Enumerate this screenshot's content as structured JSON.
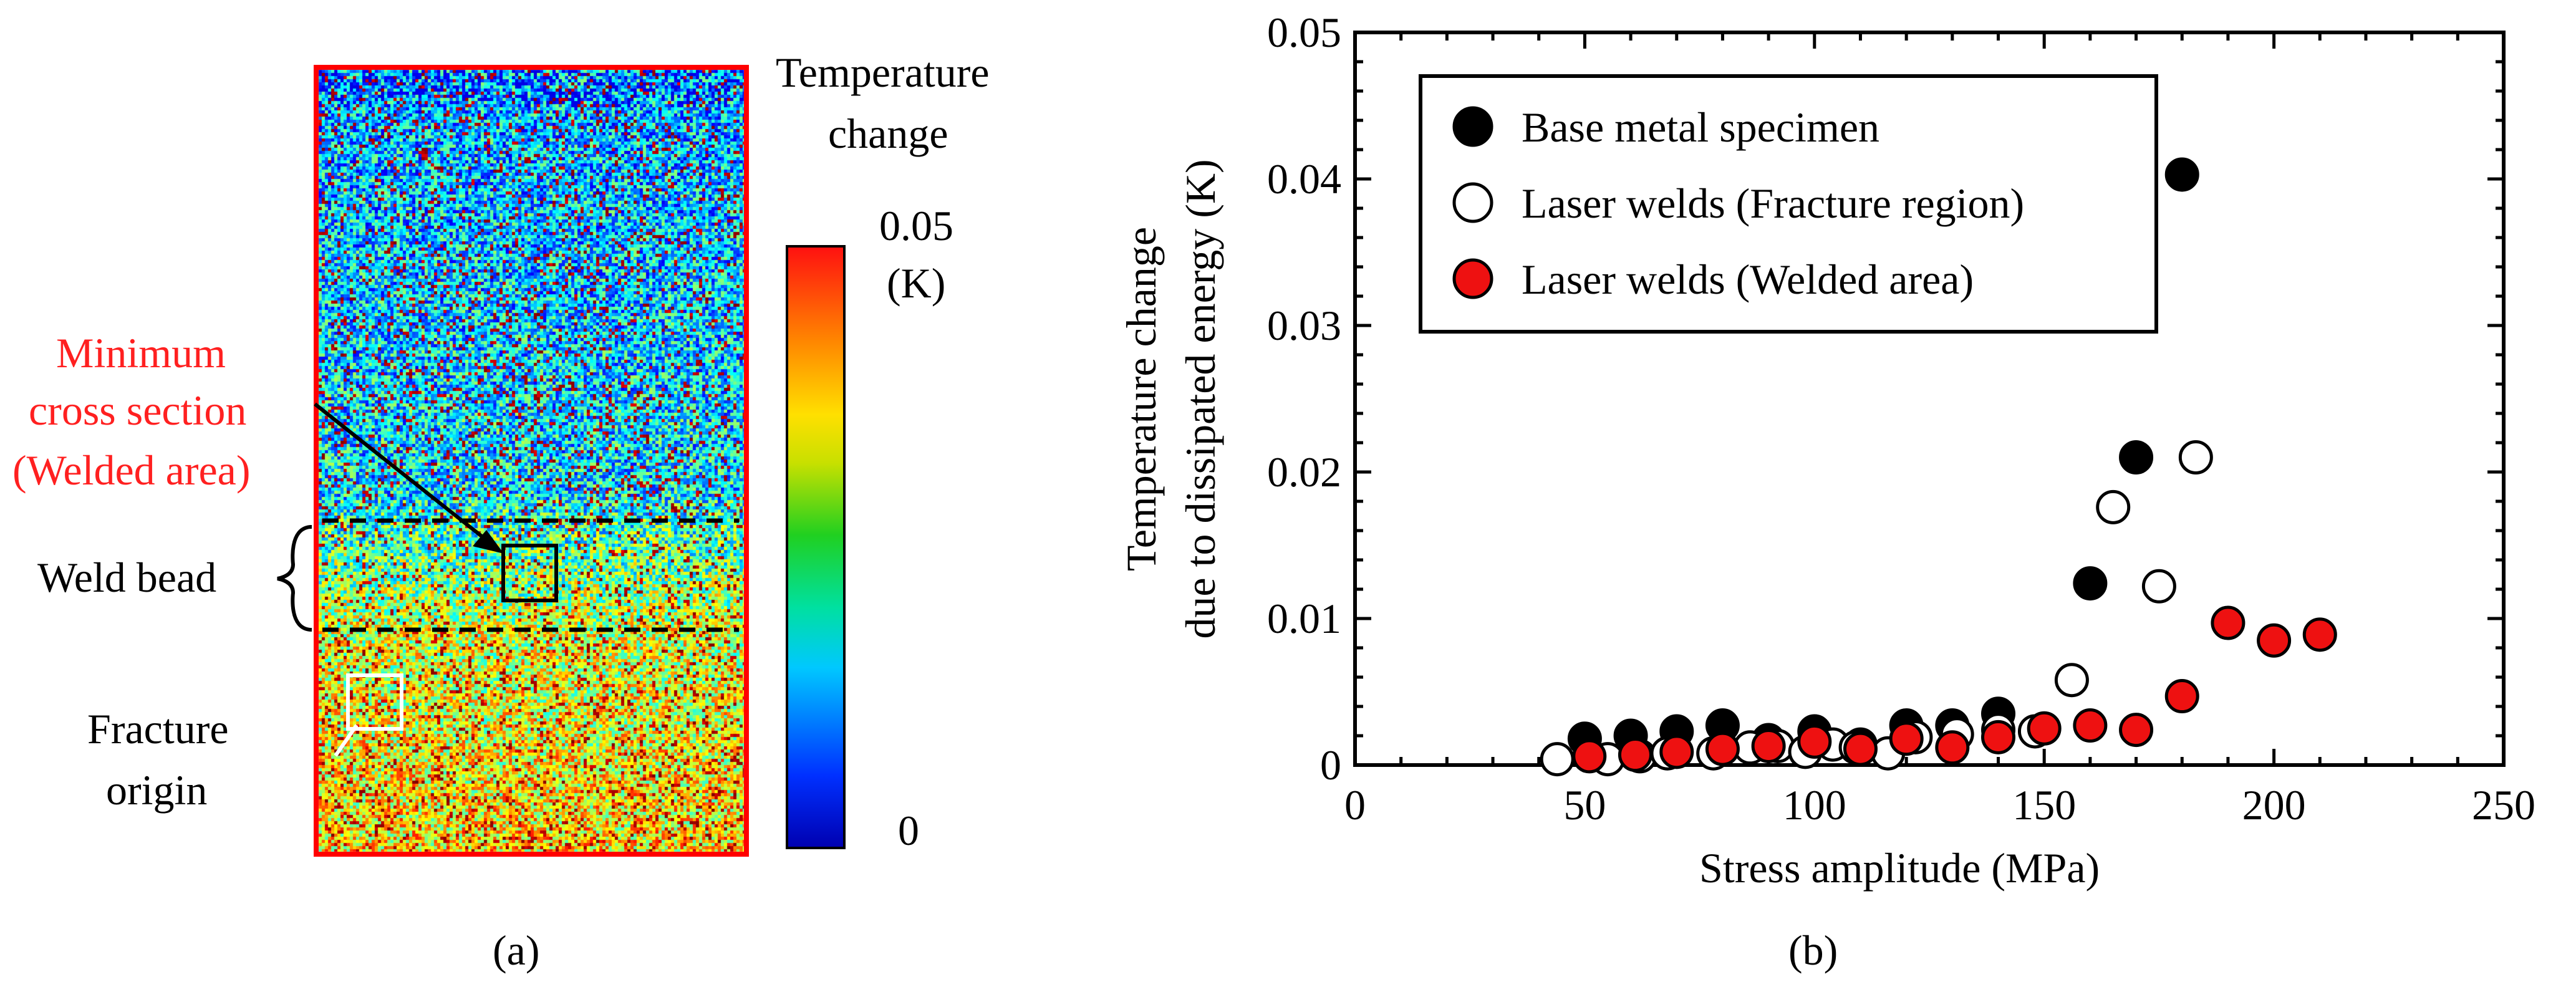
{
  "panel_a": {
    "label": "(a)",
    "colorbar": {
      "title_line1": "Temperature",
      "title_line2": "change",
      "max_label": "0.05",
      "unit_label": "(K)",
      "min_label": "0"
    },
    "annotations": {
      "min_cross_line1": "Minimum",
      "min_cross_line2": "cross section",
      "min_cross_line3": "(Welded area)",
      "weld_bead": "Weld bead",
      "fracture_line1": "Fracture",
      "fracture_line2": "origin"
    },
    "colors": {
      "annotation_red": "#ff2020",
      "frame_red": "#ff0000"
    }
  },
  "panel_b": {
    "label": "(b)"
  },
  "chart_data": {
    "type": "scatter",
    "title": "",
    "xlabel": "Stress amplitude (MPa)",
    "ylabel_line1": "Temperature change",
    "ylabel_line2": "due to dissipated energy (K)",
    "xlim": [
      0,
      250
    ],
    "ylim": [
      0,
      0.05
    ],
    "xticks": [
      0,
      50,
      100,
      150,
      200,
      250
    ],
    "yticks": [
      0,
      0.01,
      0.02,
      0.03,
      0.04,
      0.05
    ],
    "xtick_labels": [
      "0",
      "50",
      "100",
      "150",
      "200",
      "250"
    ],
    "ytick_labels": [
      "0",
      "0.01",
      "0.02",
      "0.03",
      "0.04",
      "0.05"
    ],
    "legend_position": "top-left",
    "series": [
      {
        "name": "Base metal specimen",
        "marker": "filled-black",
        "color": "#000000",
        "points": [
          [
            50,
            0.0018
          ],
          [
            60,
            0.002
          ],
          [
            70,
            0.0023
          ],
          [
            80,
            0.0027
          ],
          [
            90,
            0.0017
          ],
          [
            100,
            0.0023
          ],
          [
            110,
            0.0014
          ],
          [
            120,
            0.0027
          ],
          [
            130,
            0.0027
          ],
          [
            140,
            0.0035
          ],
          [
            160,
            0.0124
          ],
          [
            170,
            0.021
          ],
          [
            180,
            0.0403
          ]
        ]
      },
      {
        "name": "Laser welds (Fracture region)",
        "marker": "open-white",
        "color": "#ffffff",
        "points": [
          [
            44,
            0.0004
          ],
          [
            55,
            0.0004
          ],
          [
            62,
            0.0006
          ],
          [
            68,
            0.0008
          ],
          [
            78,
            0.0008
          ],
          [
            86,
            0.0012
          ],
          [
            92,
            0.0013
          ],
          [
            98,
            0.0009
          ],
          [
            104,
            0.0014
          ],
          [
            109,
            0.0012
          ],
          [
            116,
            0.0008
          ],
          [
            122,
            0.0019
          ],
          [
            131,
            0.0021
          ],
          [
            140,
            0.0024
          ],
          [
            148,
            0.0023
          ],
          [
            156,
            0.0058
          ],
          [
            165,
            0.0176
          ],
          [
            175,
            0.0122
          ],
          [
            183,
            0.021
          ]
        ]
      },
      {
        "name": "Laser welds (Welded area)",
        "marker": "filled-red",
        "color": "#ee1111",
        "points": [
          [
            51,
            0.0006
          ],
          [
            61,
            0.0007
          ],
          [
            70,
            0.0009
          ],
          [
            80,
            0.0011
          ],
          [
            90,
            0.0013
          ],
          [
            100,
            0.0016
          ],
          [
            110,
            0.0011
          ],
          [
            120,
            0.0018
          ],
          [
            130,
            0.0012
          ],
          [
            140,
            0.0019
          ],
          [
            150,
            0.0025
          ],
          [
            160,
            0.0027
          ],
          [
            170,
            0.0024
          ],
          [
            180,
            0.0047
          ],
          [
            190,
            0.0097
          ],
          [
            200,
            0.0085
          ],
          [
            210,
            0.0089
          ]
        ]
      }
    ]
  }
}
